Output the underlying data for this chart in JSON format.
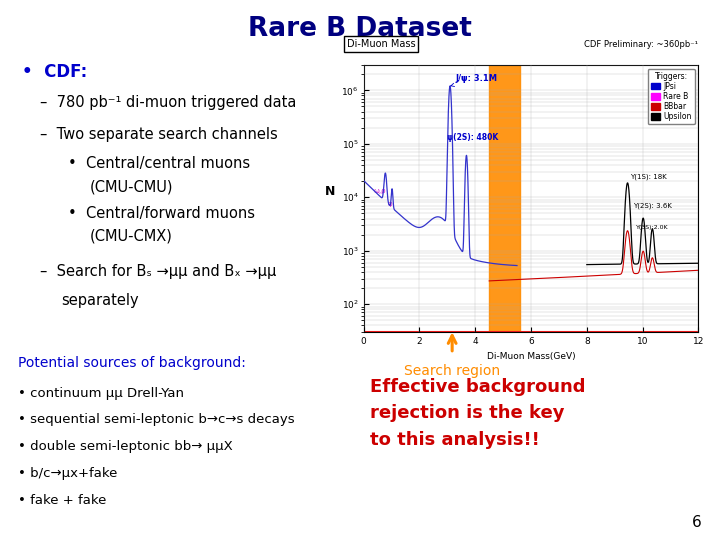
{
  "title": "Rare B Dataset",
  "title_bg": "#FFFF00",
  "title_color": "#000080",
  "background_color": "#FFFFFF",
  "page_number": "6",
  "bullet_header": "CDF:",
  "bullet_header_color": "#0000CC",
  "bottom_left_header": "Potential sources of background:",
  "bottom_left_header_color": "#0000CC",
  "bottom_left_items": [
    "• continuum μμ Drell-Yan",
    "• sequential semi-leptonic b→c→s decays",
    "• double semi-leptonic bb→ μμX",
    "• b/c→μx+fake",
    "• fake + fake"
  ],
  "bottom_left_color": "#000000",
  "bottom_right_text": "Effective background\nrejection is the key\nto this analysis!!",
  "bottom_right_color": "#CC0000",
  "search_region_label": "Search region",
  "search_region_color": "#FF8C00",
  "plot_title": "Di-Muon Mass",
  "plot_note": "CDF Preliminary: ~360pb⁻¹",
  "plot_xlabel": "Di-Muon Mass(GeV)",
  "plot_ylabel": "N",
  "plot_xrange": [
    0,
    12
  ],
  "legend_title": "Triggers:",
  "legend_entries": [
    "JPsi",
    "Rare B",
    "BBbar",
    "Upsilon"
  ],
  "legend_colors": [
    "#0000CC",
    "#FF00FF",
    "#CC0000",
    "#000000"
  ]
}
